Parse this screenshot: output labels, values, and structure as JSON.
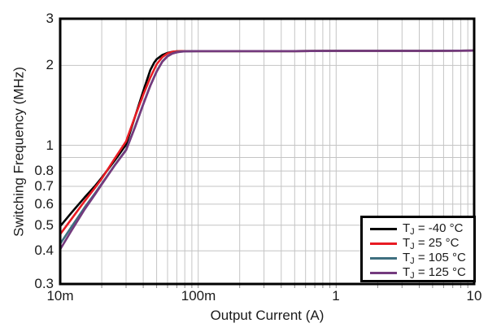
{
  "chart_data": {
    "type": "line",
    "title": "",
    "xlabel": "Output Current (A)",
    "ylabel": "Switching Frequency (MHz)",
    "x_scale": "log",
    "y_scale": "log",
    "xlim": [
      0.01,
      10
    ],
    "ylim": [
      0.3,
      3
    ],
    "grid": true,
    "legend_position": "lower-right",
    "x_major_ticks": [
      {
        "value": 0.01,
        "label": "10m"
      },
      {
        "value": 0.1,
        "label": "100m"
      },
      {
        "value": 1,
        "label": "1"
      },
      {
        "value": 10,
        "label": "10"
      }
    ],
    "y_major_ticks": [
      {
        "value": 3,
        "label": "3"
      },
      {
        "value": 2,
        "label": "2"
      },
      {
        "value": 1,
        "label": "1"
      },
      {
        "value": 0.8,
        "label": "0.8"
      },
      {
        "value": 0.7,
        "label": "0.7"
      },
      {
        "value": 0.6,
        "label": "0.6"
      },
      {
        "value": 0.5,
        "label": "0.5"
      },
      {
        "value": 0.4,
        "label": "0.4"
      },
      {
        "value": 0.3,
        "label": "0.3"
      }
    ],
    "series": [
      {
        "name": "TJ = -40 °C",
        "label_main": "T",
        "label_sub": "J",
        "label_rest": " = -40 °C",
        "color": "#000000",
        "points": [
          [
            0.01,
            0.495
          ],
          [
            0.012,
            0.555
          ],
          [
            0.015,
            0.635
          ],
          [
            0.018,
            0.705
          ],
          [
            0.02,
            0.755
          ],
          [
            0.025,
            0.88
          ],
          [
            0.03,
            1.005
          ],
          [
            0.035,
            1.29
          ],
          [
            0.04,
            1.6
          ],
          [
            0.045,
            1.92
          ],
          [
            0.048,
            2.05
          ],
          [
            0.05,
            2.11
          ],
          [
            0.055,
            2.19
          ],
          [
            0.06,
            2.23
          ],
          [
            0.065,
            2.25
          ],
          [
            0.07,
            2.26
          ],
          [
            0.08,
            2.265
          ],
          [
            0.1,
            2.265
          ],
          [
            0.2,
            2.265
          ],
          [
            0.5,
            2.265
          ],
          [
            1.0,
            2.27
          ],
          [
            2.0,
            2.27
          ],
          [
            5.0,
            2.27
          ],
          [
            10.0,
            2.275
          ]
        ]
      },
      {
        "name": "TJ = 25 °C",
        "label_main": "T",
        "label_sub": "J",
        "label_rest": " = 25 °C",
        "color": "#e81b23",
        "points": [
          [
            0.01,
            0.462
          ],
          [
            0.012,
            0.525
          ],
          [
            0.015,
            0.615
          ],
          [
            0.018,
            0.695
          ],
          [
            0.02,
            0.748
          ],
          [
            0.025,
            0.895
          ],
          [
            0.03,
            1.035
          ],
          [
            0.035,
            1.29
          ],
          [
            0.04,
            1.55
          ],
          [
            0.045,
            1.8
          ],
          [
            0.05,
            2.02
          ],
          [
            0.055,
            2.15
          ],
          [
            0.06,
            2.22
          ],
          [
            0.065,
            2.25
          ],
          [
            0.07,
            2.26
          ],
          [
            0.08,
            2.265
          ],
          [
            0.1,
            2.265
          ],
          [
            0.2,
            2.265
          ],
          [
            0.5,
            2.265
          ],
          [
            1.0,
            2.27
          ],
          [
            2.0,
            2.27
          ],
          [
            5.0,
            2.27
          ],
          [
            10.0,
            2.275
          ]
        ]
      },
      {
        "name": "TJ = 105 °C",
        "label_main": "T",
        "label_sub": "J",
        "label_rest": " = 105 °C",
        "color": "#3e6f7f",
        "points": [
          [
            0.01,
            0.425
          ],
          [
            0.012,
            0.49
          ],
          [
            0.015,
            0.582
          ],
          [
            0.018,
            0.662
          ],
          [
            0.02,
            0.716
          ],
          [
            0.025,
            0.845
          ],
          [
            0.03,
            0.962
          ],
          [
            0.035,
            1.18
          ],
          [
            0.04,
            1.43
          ],
          [
            0.045,
            1.68
          ],
          [
            0.05,
            1.9
          ],
          [
            0.055,
            2.07
          ],
          [
            0.06,
            2.17
          ],
          [
            0.065,
            2.22
          ],
          [
            0.07,
            2.245
          ],
          [
            0.075,
            2.255
          ],
          [
            0.08,
            2.26
          ],
          [
            0.1,
            2.265
          ],
          [
            0.2,
            2.265
          ],
          [
            0.5,
            2.265
          ],
          [
            1.0,
            2.27
          ],
          [
            2.0,
            2.27
          ],
          [
            5.0,
            2.27
          ],
          [
            10.0,
            2.275
          ]
        ]
      },
      {
        "name": "TJ = 125 °C",
        "label_main": "T",
        "label_sub": "J",
        "label_rest": " = 125 °C",
        "color": "#743a7e",
        "points": [
          [
            0.01,
            0.405
          ],
          [
            0.012,
            0.474
          ],
          [
            0.015,
            0.572
          ],
          [
            0.018,
            0.656
          ],
          [
            0.02,
            0.712
          ],
          [
            0.025,
            0.843
          ],
          [
            0.03,
            0.958
          ],
          [
            0.035,
            1.175
          ],
          [
            0.04,
            1.425
          ],
          [
            0.045,
            1.675
          ],
          [
            0.05,
            1.895
          ],
          [
            0.055,
            2.065
          ],
          [
            0.06,
            2.165
          ],
          [
            0.065,
            2.215
          ],
          [
            0.07,
            2.24
          ],
          [
            0.075,
            2.253
          ],
          [
            0.08,
            2.26
          ],
          [
            0.1,
            2.265
          ],
          [
            0.2,
            2.265
          ],
          [
            0.5,
            2.265
          ],
          [
            1.0,
            2.27
          ],
          [
            2.0,
            2.27
          ],
          [
            5.0,
            2.27
          ],
          [
            10.0,
            2.275
          ]
        ]
      }
    ],
    "colors": {
      "grid": "#c4c4c4",
      "axis": "#000000",
      "text": "#1a1a1a",
      "background": "#ffffff"
    }
  }
}
